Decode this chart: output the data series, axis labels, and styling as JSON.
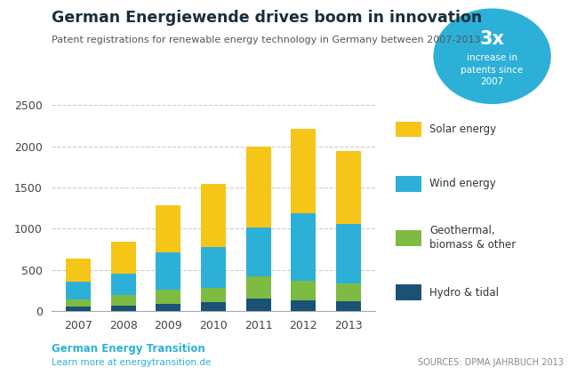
{
  "title": "German Energiewende drives boom in innovation",
  "subtitle": "Patent registrations for renewable energy technology in Germany between 2007-2013",
  "years": [
    2007,
    2008,
    2009,
    2010,
    2011,
    2012,
    2013
  ],
  "hydro_tidal": [
    55,
    70,
    90,
    110,
    150,
    130,
    120
  ],
  "geothermal": [
    90,
    130,
    170,
    175,
    270,
    240,
    220
  ],
  "wind": [
    210,
    260,
    450,
    490,
    600,
    820,
    720
  ],
  "solar": [
    285,
    380,
    570,
    770,
    980,
    1020,
    880
  ],
  "color_hydro": "#1a5276",
  "color_geo": "#7dbb42",
  "color_wind": "#2db0d8",
  "color_solar": "#f5c518",
  "bg_color": "#ffffff",
  "grid_color": "#cccccc",
  "ylim": [
    0,
    2500
  ],
  "yticks": [
    0,
    500,
    1000,
    1500,
    2000,
    2500
  ],
  "footer_left": "German Energy Transition",
  "footer_left2": "Learn more at energytransition.de",
  "footer_right": "SOURCES: DPMA JAHRBUCH 2013",
  "badge_color": "#2db0d8",
  "title_color": "#1a2e3b",
  "subtitle_color": "#555555",
  "footer_left_color": "#2db0d8",
  "footer_right_color": "#888888"
}
